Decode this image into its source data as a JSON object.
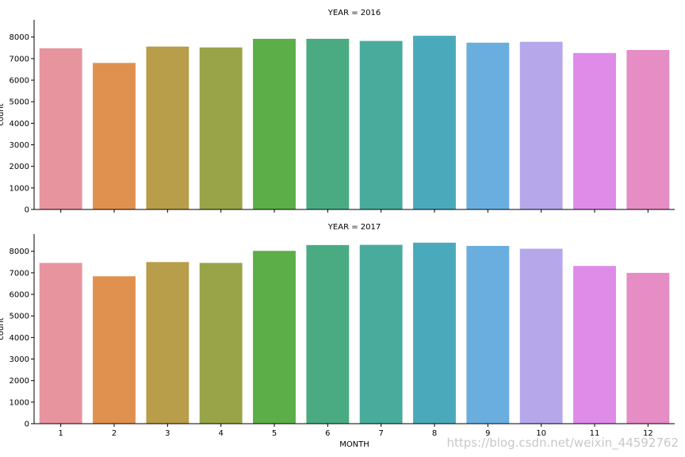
{
  "chart_data": {
    "type": "bar",
    "categories": [
      "1",
      "2",
      "3",
      "4",
      "5",
      "6",
      "7",
      "8",
      "9",
      "10",
      "11",
      "12"
    ],
    "xlabel": "MONTH",
    "ylabel": "count",
    "ylim": [
      0,
      8800
    ],
    "yticks": [
      0,
      1000,
      2000,
      3000,
      4000,
      5000,
      6000,
      7000,
      8000
    ],
    "colors": [
      "#e8949f",
      "#e0914f",
      "#b89d4a",
      "#98a447",
      "#5bae48",
      "#4aab82",
      "#49ab9c",
      "#4aaabb",
      "#6aaee0",
      "#b6a6ea",
      "#de8ce8",
      "#e58dc4"
    ],
    "panels": [
      {
        "title": "YEAR = 2016",
        "values": [
          7480,
          6800,
          7560,
          7520,
          7920,
          7920,
          7820,
          8060,
          7740,
          7780,
          7260,
          7400
        ]
      },
      {
        "title": "YEAR = 2017",
        "values": [
          7460,
          6840,
          7500,
          7460,
          8020,
          8290,
          8300,
          8400,
          8250,
          8120,
          7320,
          7000
        ]
      }
    ]
  },
  "watermark": "https://blog.csdn.net/weixin_44592762"
}
